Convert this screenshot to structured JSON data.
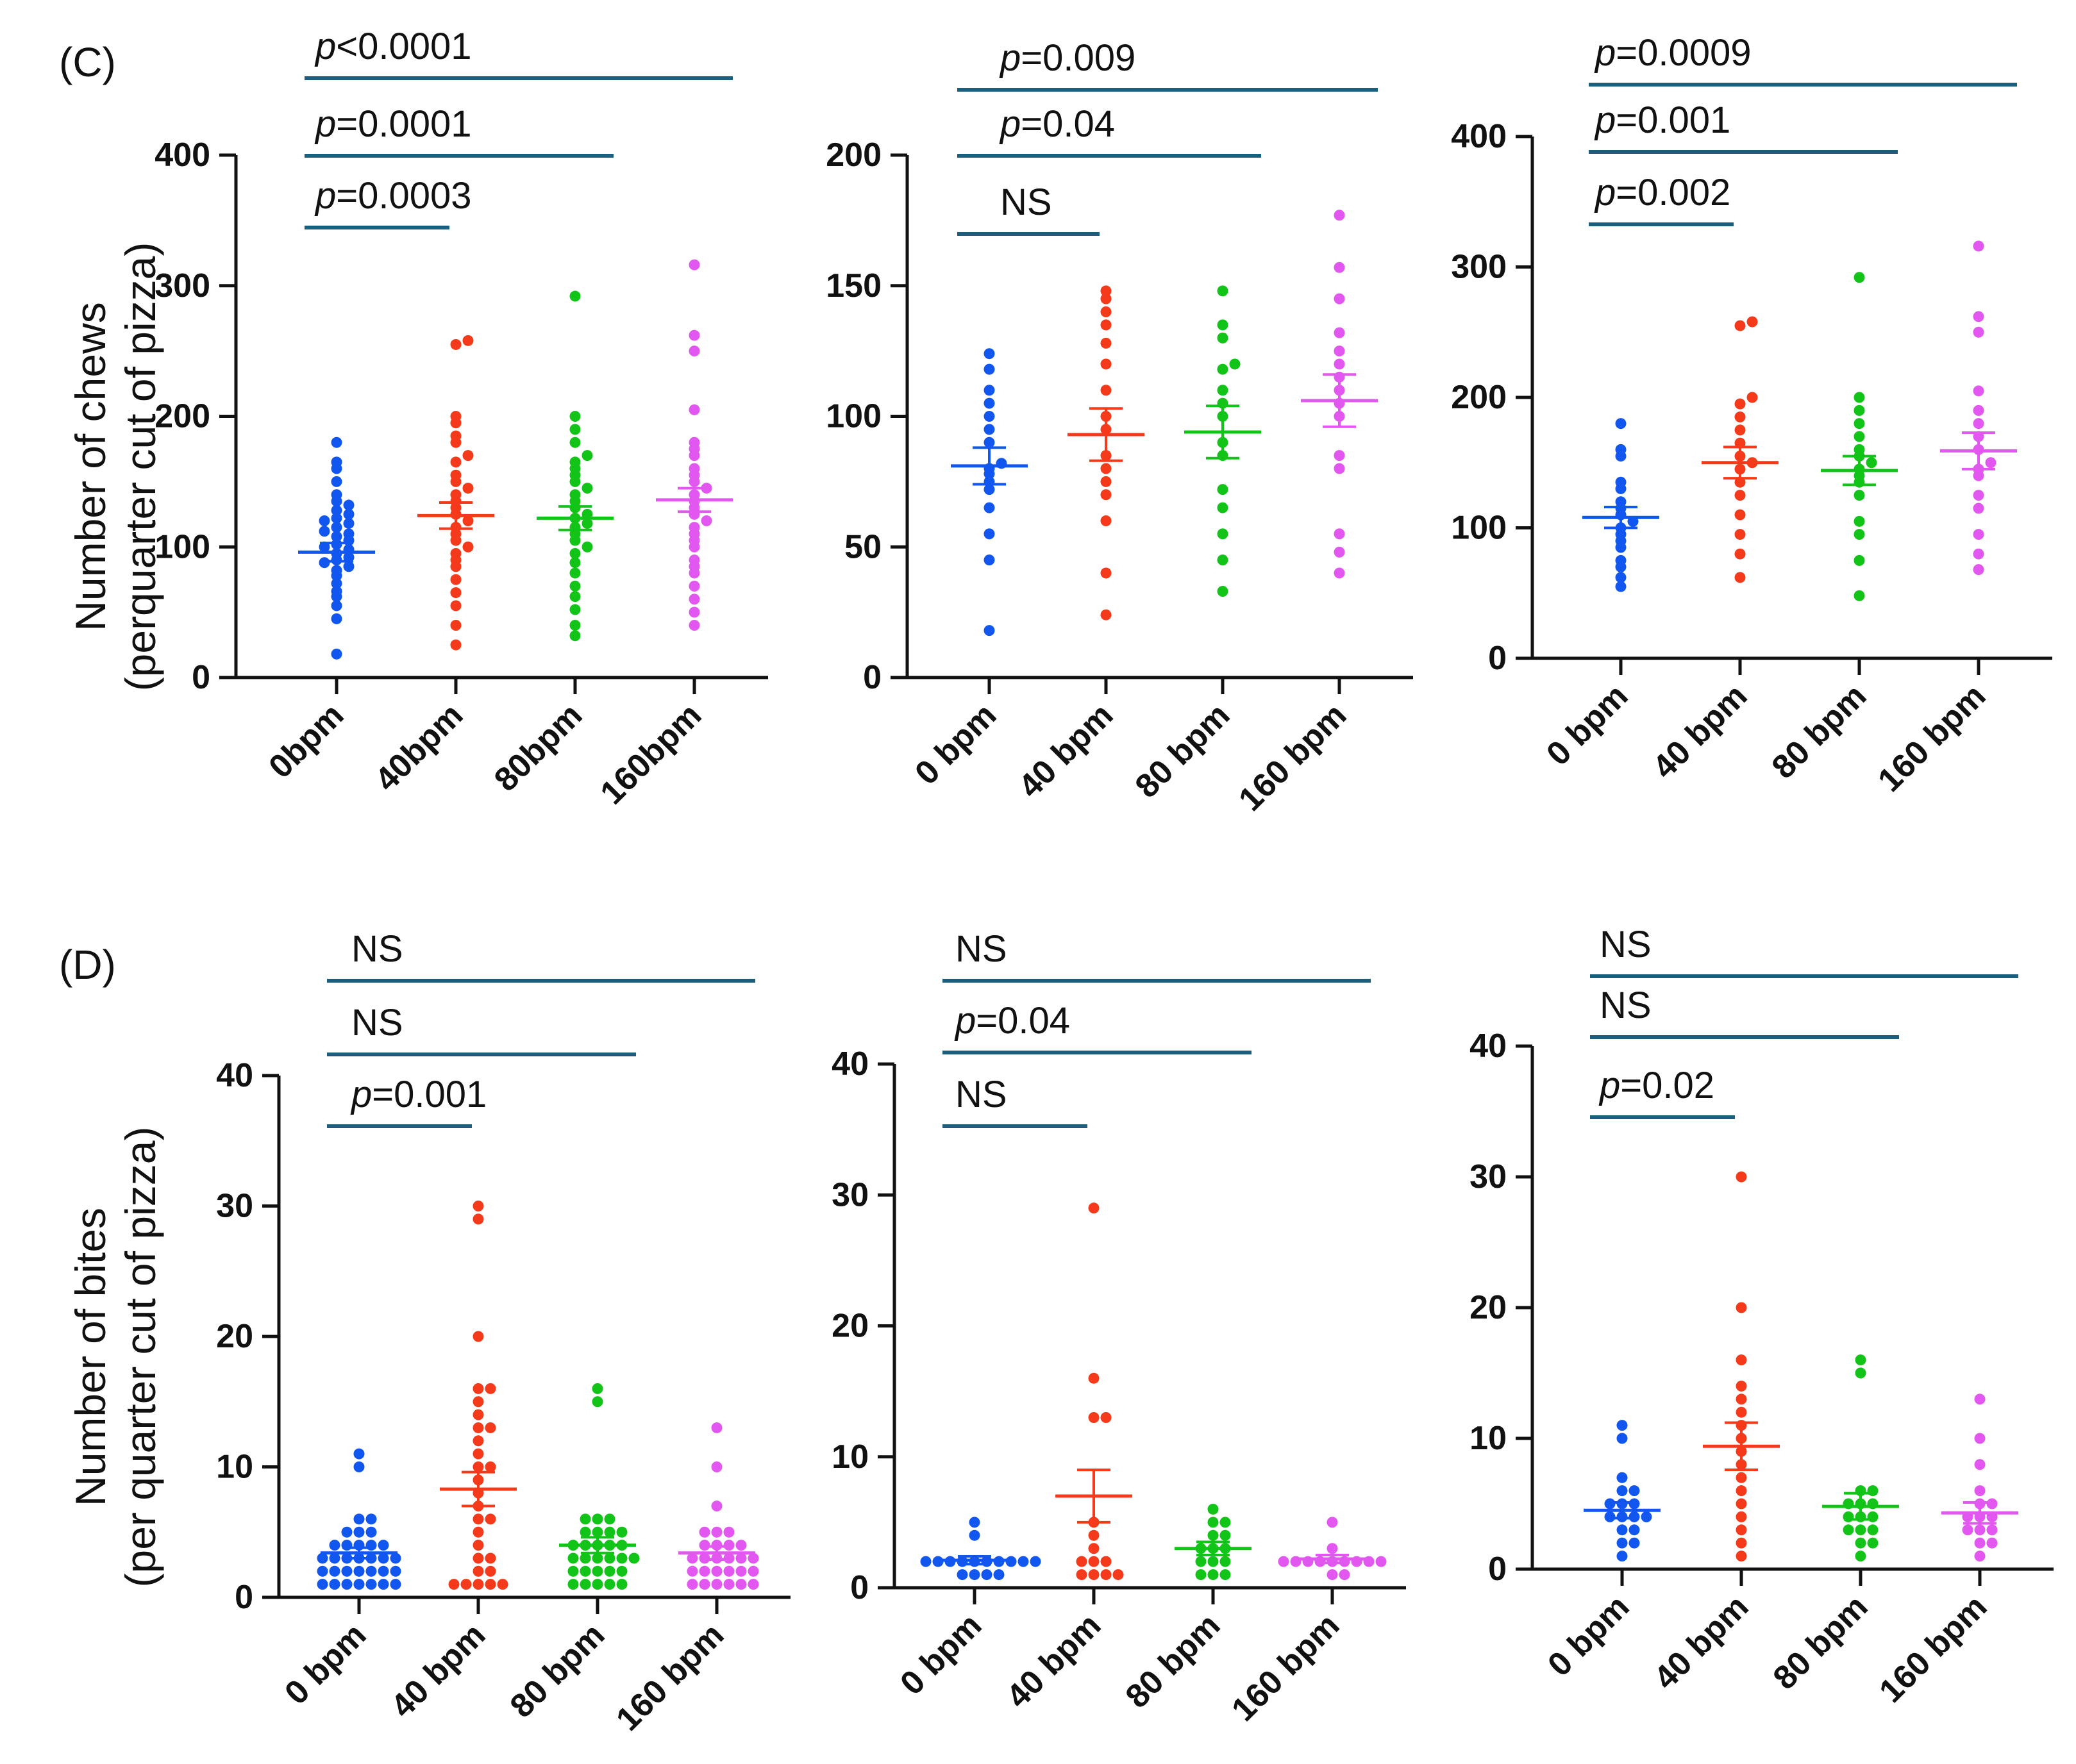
{
  "colors": {
    "blue": "#1256f0",
    "red": "#f43a1a",
    "green": "#12c418",
    "magenta": "#e257f0",
    "bracket": "#1c5e7e",
    "axis": "#111111"
  },
  "panels": {
    "C": {
      "letter": "(C)",
      "ylabel_line1": "Number of chews",
      "ylabel_line2": "(perquarter cut of pizza)"
    },
    "D": {
      "letter": "(D)",
      "ylabel_line1": "Number of bites",
      "ylabel_line2": "(per quarter cut of pizza)"
    }
  },
  "chart_data": [
    {
      "id": "C1",
      "type": "scatter",
      "title": "",
      "ylabel": "Number of chews (perquarter cut of pizza)",
      "ylim": [
        0,
        400
      ],
      "yticks": [
        0,
        100,
        200,
        300,
        400
      ],
      "categories": [
        "0bpm",
        "40bpm",
        "80bpm",
        "160bpm"
      ],
      "series": [
        {
          "name": "0bpm",
          "color": "blue",
          "mean": 96,
          "sem": 7,
          "values": [
            18,
            45,
            55,
            62,
            66,
            72,
            78,
            82,
            85,
            88,
            90,
            92,
            95,
            98,
            100,
            102,
            105,
            108,
            110,
            112,
            115,
            118,
            120,
            122,
            125,
            128,
            132,
            135,
            140,
            150,
            160,
            165,
            180
          ]
        },
        {
          "name": "40bpm",
          "color": "red",
          "mean": 124,
          "sem": 10,
          "values": [
            25,
            40,
            55,
            65,
            75,
            85,
            90,
            95,
            100,
            105,
            110,
            115,
            120,
            125,
            130,
            135,
            140,
            145,
            150,
            155,
            165,
            170,
            180,
            185,
            195,
            200,
            255,
            258
          ]
        },
        {
          "name": "80bpm",
          "color": "green",
          "mean": 122,
          "sem": 9,
          "values": [
            32,
            40,
            52,
            62,
            70,
            80,
            88,
            95,
            100,
            105,
            110,
            115,
            118,
            122,
            125,
            130,
            135,
            140,
            145,
            150,
            155,
            160,
            165,
            170,
            180,
            190,
            200,
            292
          ]
        },
        {
          "name": "160bpm",
          "color": "magenta",
          "mean": 136,
          "sem": 9,
          "values": [
            40,
            50,
            60,
            70,
            80,
            85,
            90,
            100,
            105,
            110,
            115,
            120,
            125,
            130,
            135,
            140,
            145,
            150,
            155,
            160,
            170,
            175,
            180,
            205,
            250,
            262,
            316
          ]
        }
      ],
      "comparisons": [
        {
          "label_prefix": "p",
          "label_rest": "=0.0003",
          "from": 0,
          "to": 1
        },
        {
          "label_prefix": "p",
          "label_rest": "=0.0001",
          "from": 0,
          "to": 2
        },
        {
          "label_prefix": "p",
          "label_rest": "<0.0001",
          "from": 0,
          "to": 3
        }
      ]
    },
    {
      "id": "C2",
      "type": "scatter",
      "title": "",
      "ylim": [
        0,
        200
      ],
      "yticks": [
        0,
        50,
        100,
        150,
        200
      ],
      "categories": [
        "0 bpm",
        "40 bpm",
        "80 bpm",
        "160 bpm"
      ],
      "series": [
        {
          "name": "0 bpm",
          "color": "blue",
          "mean": 81,
          "sem": 7,
          "values": [
            18,
            45,
            55,
            65,
            72,
            75,
            78,
            80,
            82,
            90,
            95,
            100,
            105,
            110,
            118,
            124
          ]
        },
        {
          "name": "40 bpm",
          "color": "red",
          "mean": 93,
          "sem": 10,
          "values": [
            24,
            40,
            60,
            70,
            75,
            80,
            85,
            95,
            100,
            110,
            120,
            128,
            135,
            140,
            145,
            148
          ]
        },
        {
          "name": "80 bpm",
          "color": "green",
          "mean": 94,
          "sem": 10,
          "values": [
            33,
            45,
            55,
            65,
            72,
            85,
            90,
            100,
            105,
            110,
            118,
            120,
            130,
            135,
            148
          ]
        },
        {
          "name": "160 bpm",
          "color": "magenta",
          "mean": 106,
          "sem": 10,
          "values": [
            40,
            48,
            55,
            80,
            85,
            100,
            105,
            110,
            115,
            120,
            125,
            132,
            145,
            157,
            177
          ]
        }
      ],
      "comparisons": [
        {
          "label_prefix": "",
          "label_rest": "NS",
          "from": 0,
          "to": 1
        },
        {
          "label_prefix": "p",
          "label_rest": "=0.04",
          "from": 0,
          "to": 2
        },
        {
          "label_prefix": "p",
          "label_rest": "=0.009",
          "from": 0,
          "to": 3
        }
      ]
    },
    {
      "id": "C3",
      "type": "scatter",
      "title": "",
      "ylim": [
        0,
        400
      ],
      "yticks": [
        0,
        100,
        200,
        300,
        400
      ],
      "categories": [
        "0 bpm",
        "40 bpm",
        "80 bpm",
        "160 bpm"
      ],
      "series": [
        {
          "name": "0 bpm",
          "color": "blue",
          "mean": 108,
          "sem": 8,
          "values": [
            55,
            62,
            70,
            75,
            85,
            90,
            95,
            100,
            105,
            110,
            115,
            120,
            130,
            135,
            155,
            160,
            180
          ]
        },
        {
          "name": "40 bpm",
          "color": "red",
          "mean": 150,
          "sem": 12,
          "values": [
            62,
            80,
            95,
            110,
            125,
            135,
            145,
            150,
            155,
            165,
            175,
            185,
            195,
            200,
            255,
            258
          ]
        },
        {
          "name": "80 bpm",
          "color": "green",
          "mean": 144,
          "sem": 11,
          "values": [
            48,
            75,
            95,
            105,
            125,
            135,
            140,
            145,
            150,
            155,
            160,
            170,
            180,
            190,
            200,
            292
          ]
        },
        {
          "name": "160 bpm",
          "color": "magenta",
          "mean": 159,
          "sem": 14,
          "values": [
            68,
            80,
            95,
            115,
            125,
            140,
            145,
            150,
            160,
            170,
            180,
            190,
            205,
            250,
            262,
            316
          ]
        }
      ],
      "comparisons": [
        {
          "label_prefix": "p",
          "label_rest": "=0.002",
          "from": 0,
          "to": 1
        },
        {
          "label_prefix": "p",
          "label_rest": "=0.001",
          "from": 0,
          "to": 2
        },
        {
          "label_prefix": "p",
          "label_rest": "=0.0009",
          "from": 0,
          "to": 3
        }
      ]
    },
    {
      "id": "D1",
      "type": "scatter",
      "title": "",
      "ylabel": "Number of bites (per quarter cut of pizza)",
      "ylim": [
        0,
        40
      ],
      "yticks": [
        0,
        10,
        20,
        30,
        40
      ],
      "categories": [
        "0 bpm",
        "40 bpm",
        "80 bpm",
        "160 bpm"
      ],
      "series": [
        {
          "name": "0 bpm",
          "color": "blue",
          "mean": 3.4,
          "sem": 0.4,
          "values": [
            1,
            1,
            1,
            1,
            1,
            1,
            1,
            2,
            2,
            2,
            2,
            2,
            2,
            2,
            3,
            3,
            3,
            3,
            3,
            3,
            3,
            4,
            4,
            4,
            4,
            4,
            5,
            5,
            5,
            6,
            6,
            10,
            11
          ]
        },
        {
          "name": "40 bpm",
          "color": "red",
          "mean": 8.3,
          "sem": 1.3,
          "values": [
            1,
            1,
            1,
            1,
            1,
            2,
            2,
            3,
            3,
            4,
            5,
            6,
            6,
            7,
            8,
            9,
            10,
            10,
            11,
            12,
            13,
            13,
            14,
            15,
            16,
            16,
            20,
            29,
            30
          ]
        },
        {
          "name": "80 bpm",
          "color": "green",
          "mean": 4.0,
          "sem": 0.6,
          "values": [
            1,
            1,
            1,
            1,
            1,
            2,
            2,
            2,
            2,
            2,
            3,
            3,
            3,
            3,
            3,
            3,
            4,
            4,
            4,
            4,
            4,
            5,
            5,
            5,
            5,
            6,
            6,
            6,
            15,
            16
          ]
        },
        {
          "name": "160 bpm",
          "color": "magenta",
          "mean": 3.4,
          "sem": 0.5,
          "values": [
            1,
            1,
            1,
            1,
            1,
            1,
            2,
            2,
            2,
            2,
            2,
            2,
            3,
            3,
            3,
            3,
            3,
            3,
            4,
            4,
            4,
            4,
            5,
            5,
            5,
            7,
            10,
            13
          ]
        }
      ],
      "comparisons": [
        {
          "label_prefix": "p",
          "label_rest": "=0.001",
          "from": 0,
          "to": 1
        },
        {
          "label_prefix": "",
          "label_rest": "NS",
          "from": 0,
          "to": 2
        },
        {
          "label_prefix": "",
          "label_rest": "NS",
          "from": 0,
          "to": 3
        }
      ]
    },
    {
      "id": "D2",
      "type": "scatter",
      "title": "",
      "ylim": [
        0,
        40
      ],
      "yticks": [
        0,
        10,
        20,
        30,
        40
      ],
      "categories": [
        "0 bpm",
        "40 bpm",
        "80 bpm",
        "160 bpm"
      ],
      "series": [
        {
          "name": "0 bpm",
          "color": "blue",
          "mean": 2.1,
          "sem": 0.3,
          "values": [
            1,
            1,
            1,
            1,
            2,
            2,
            2,
            2,
            2,
            2,
            2,
            2,
            2,
            2,
            4,
            5
          ]
        },
        {
          "name": "40 bpm",
          "color": "red",
          "mean": 7.0,
          "sem": 2.0,
          "values": [
            1,
            1,
            1,
            1,
            2,
            2,
            2,
            3,
            4,
            5,
            13,
            13,
            16,
            29
          ]
        },
        {
          "name": "80 bpm",
          "color": "green",
          "mean": 3.0,
          "sem": 0.5,
          "values": [
            1,
            1,
            1,
            2,
            2,
            2,
            3,
            3,
            3,
            4,
            4,
            5,
            5,
            6
          ]
        },
        {
          "name": "160 bpm",
          "color": "magenta",
          "mean": 2.2,
          "sem": 0.3,
          "values": [
            1,
            1,
            2,
            2,
            2,
            2,
            2,
            2,
            2,
            2,
            2,
            3,
            5
          ]
        }
      ],
      "comparisons": [
        {
          "label_prefix": "",
          "label_rest": "NS",
          "from": 0,
          "to": 1
        },
        {
          "label_prefix": "p",
          "label_rest": "=0.04",
          "from": 0,
          "to": 2
        },
        {
          "label_prefix": "",
          "label_rest": "NS",
          "from": 0,
          "to": 3
        }
      ]
    },
    {
      "id": "D3",
      "type": "scatter",
      "title": "",
      "ylim": [
        0,
        40
      ],
      "yticks": [
        0,
        10,
        20,
        30,
        40
      ],
      "categories": [
        "0 bpm",
        "40 bpm",
        "80 bpm",
        "160 bpm"
      ],
      "series": [
        {
          "name": "0 bpm",
          "color": "blue",
          "mean": 4.5,
          "sem": 0.6,
          "values": [
            1,
            2,
            2,
            3,
            3,
            4,
            4,
            4,
            4,
            5,
            5,
            5,
            6,
            6,
            7,
            10,
            11
          ]
        },
        {
          "name": "40 bpm",
          "color": "red",
          "mean": 9.4,
          "sem": 1.8,
          "values": [
            1,
            2,
            3,
            4,
            5,
            6,
            7,
            8,
            9,
            10,
            11,
            12,
            13,
            14,
            16,
            20,
            30
          ]
        },
        {
          "name": "80 bpm",
          "color": "green",
          "mean": 4.8,
          "sem": 1.0,
          "values": [
            1,
            2,
            2,
            3,
            3,
            3,
            4,
            4,
            4,
            5,
            5,
            5,
            6,
            6,
            15,
            16
          ]
        },
        {
          "name": "160 bpm",
          "color": "magenta",
          "mean": 4.3,
          "sem": 0.8,
          "values": [
            1,
            2,
            2,
            3,
            3,
            3,
            4,
            4,
            4,
            5,
            5,
            6,
            8,
            10,
            13
          ]
        }
      ],
      "comparisons": [
        {
          "label_prefix": "p",
          "label_rest": "=0.02",
          "from": 0,
          "to": 1
        },
        {
          "label_prefix": "",
          "label_rest": "NS",
          "from": 0,
          "to": 2
        },
        {
          "label_prefix": "",
          "label_rest": "NS",
          "from": 0,
          "to": 3
        }
      ]
    }
  ]
}
